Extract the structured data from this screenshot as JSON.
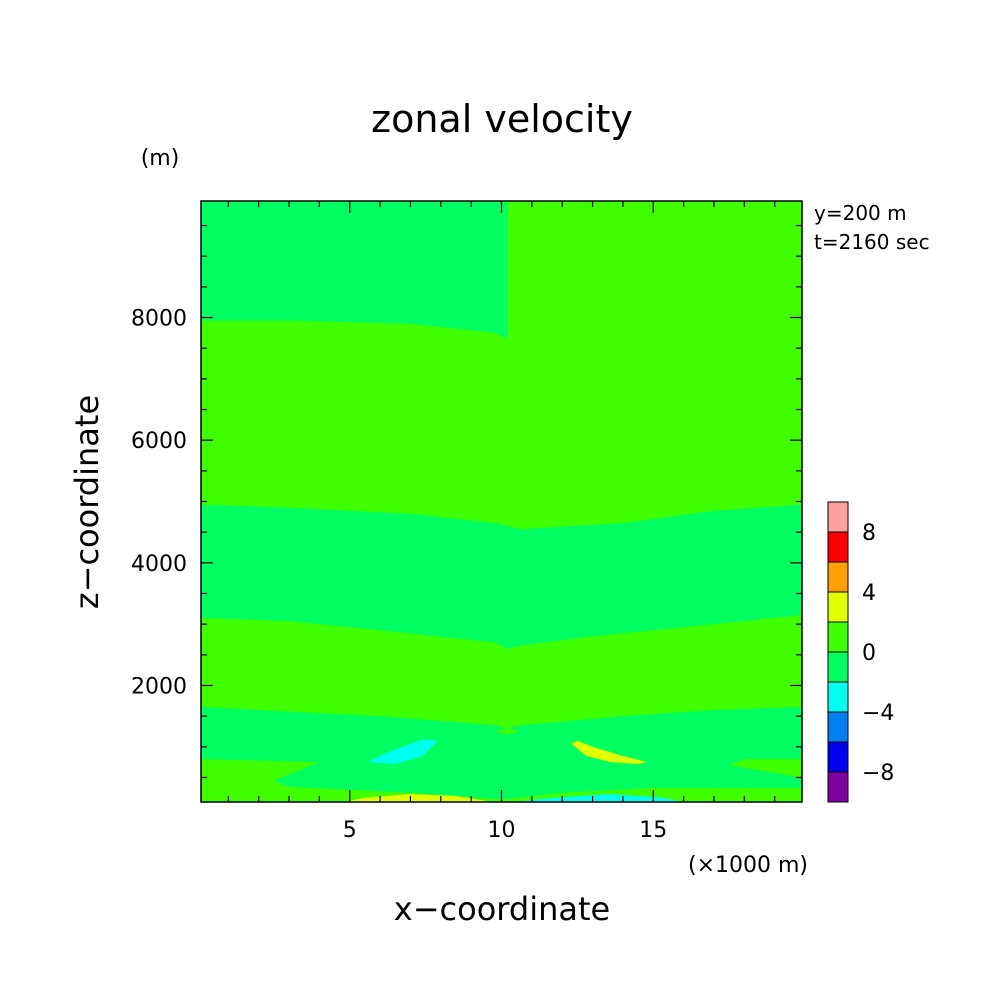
{
  "chart_data": {
    "type": "heatmap",
    "title": "zonal velocity",
    "xlabel": "x−coordinate",
    "ylabel": "z−coordinate",
    "x_unit": "(×1000 m)",
    "y_unit": "(m)",
    "annotations": [
      "y=200 m",
      "t=2160 sec"
    ],
    "xlim": [
      0.1,
      19.9
    ],
    "ylim": [
      100,
      9900
    ],
    "x_ticks": [
      5,
      10,
      15
    ],
    "x_tick_labels": [
      "5",
      "10",
      "15"
    ],
    "y_ticks": [
      2000,
      4000,
      6000,
      8000
    ],
    "y_tick_labels": [
      "2000",
      "4000",
      "6000",
      "8000"
    ],
    "grid": false,
    "colorbar": {
      "levels": [
        -10,
        -8,
        -6,
        -4,
        -2,
        0,
        2,
        4,
        6,
        8,
        10
      ],
      "tick_labels": [
        {
          "value": 8,
          "label": "8"
        },
        {
          "value": 4,
          "label": "4"
        },
        {
          "value": 0,
          "label": "0"
        },
        {
          "value": -4,
          "label": "−4"
        },
        {
          "value": -8,
          "label": "−8"
        }
      ],
      "colors": [
        "#8000a0",
        "#0000ee",
        "#0080f0",
        "#00ffee",
        "#00ff60",
        "#40ff00",
        "#e0ff00",
        "#ffa000",
        "#ff0000",
        "#ffa0a0"
      ]
    },
    "background_value": 1,
    "regions": [
      {
        "x": [
          [
            0.1,
            9900
          ],
          [
            10.2,
            9900
          ],
          [
            10.2,
            7650
          ],
          [
            9.8,
            7750
          ],
          [
            7,
            7900
          ],
          [
            3,
            7950
          ],
          [
            0.1,
            7950
          ]
        ],
        "value": -1
      },
      {
        "x": [
          [
            10.2,
            9900
          ],
          [
            19.9,
            9900
          ],
          [
            19.9,
            7950
          ],
          [
            16,
            7950
          ],
          [
            12,
            7900
          ],
          [
            10.3,
            7700
          ],
          [
            10.2,
            7650
          ]
        ],
        "value": 1
      },
      {
        "x": [
          [
            0.1,
            4950
          ],
          [
            3,
            4900
          ],
          [
            7,
            4800
          ],
          [
            9.8,
            4650
          ],
          [
            10.2,
            4600
          ],
          [
            10.2,
            2600
          ],
          [
            9.8,
            2700
          ],
          [
            7,
            2850
          ],
          [
            3,
            3050
          ],
          [
            0.1,
            3100
          ]
        ],
        "value": -1
      },
      {
        "x": [
          [
            10.2,
            4600
          ],
          [
            10.6,
            4550
          ],
          [
            14,
            4650
          ],
          [
            17,
            4850
          ],
          [
            19.9,
            4950
          ],
          [
            19.9,
            3150
          ],
          [
            16,
            2950
          ],
          [
            13,
            2800
          ],
          [
            10.6,
            2650
          ],
          [
            10.2,
            2600
          ]
        ],
        "value": -1
      },
      {
        "x": [
          [
            0.1,
            1650
          ],
          [
            2,
            1600
          ],
          [
            6,
            1500
          ],
          [
            9.8,
            1350
          ],
          [
            10.2,
            1300
          ],
          [
            10.6,
            1350
          ],
          [
            14,
            1500
          ],
          [
            17,
            1600
          ],
          [
            19.9,
            1650
          ],
          [
            19.9,
            800
          ],
          [
            18,
            800
          ],
          [
            17.5,
            700
          ],
          [
            19.9,
            500
          ],
          [
            19.9,
            330
          ],
          [
            15,
            330
          ],
          [
            12,
            250
          ],
          [
            10.2,
            150
          ],
          [
            9.8,
            150
          ],
          [
            7,
            250
          ],
          [
            3,
            350
          ],
          [
            2.5,
            450
          ],
          [
            4,
            750
          ],
          [
            0.1,
            800
          ]
        ],
        "value": -1
      },
      {
        "x": [
          [
            5.6,
            750
          ],
          [
            6.2,
            900
          ],
          [
            7.4,
            1120
          ],
          [
            7.9,
            1100
          ],
          [
            7.4,
            850
          ],
          [
            6.5,
            720
          ]
        ],
        "value": -3
      },
      {
        "x": [
          [
            12.5,
            1100
          ],
          [
            13.0,
            1000
          ],
          [
            14.0,
            850
          ],
          [
            14.8,
            750
          ],
          [
            14.5,
            720
          ],
          [
            13.6,
            750
          ],
          [
            12.8,
            850
          ],
          [
            12.3,
            1050
          ]
        ],
        "value": 3
      },
      {
        "x": [
          [
            4.8,
            100
          ],
          [
            5.5,
            170
          ],
          [
            7,
            230
          ],
          [
            8.5,
            200
          ],
          [
            9.7,
            100
          ]
        ],
        "value": 3
      },
      {
        "x": [
          [
            10.4,
            100
          ],
          [
            11.5,
            160
          ],
          [
            13.5,
            230
          ],
          [
            15.2,
            180
          ],
          [
            16,
            100
          ]
        ],
        "value": -3
      },
      {
        "x": [
          [
            9.8,
            1250
          ],
          [
            10.2,
            1200
          ],
          [
            10.6,
            1250
          ],
          [
            10.2,
            1300
          ]
        ],
        "value": 1
      }
    ]
  }
}
